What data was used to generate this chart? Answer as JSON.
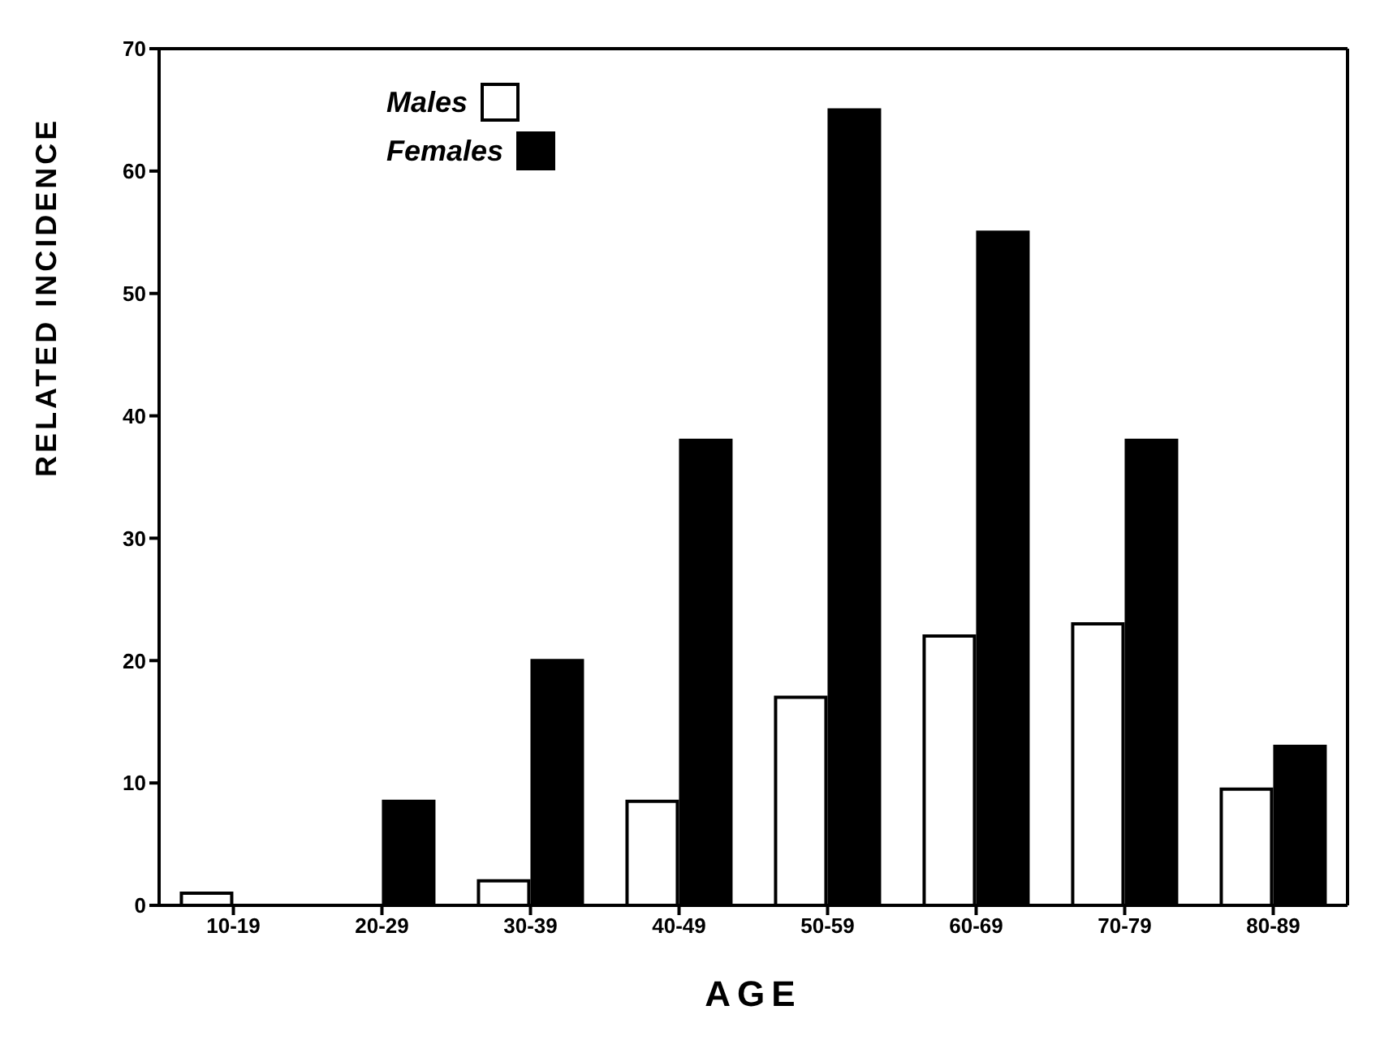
{
  "chart_data": {
    "type": "bar",
    "xlabel": "AGE",
    "ylabel": "RELATED INCIDENCE",
    "categories": [
      "10-19",
      "20-29",
      "30-39",
      "40-49",
      "50-59",
      "60-69",
      "70-79",
      "80-89"
    ],
    "series": [
      {
        "name": "Males",
        "color": "#ffffff",
        "values": [
          1,
          0,
          2,
          8.5,
          17,
          22,
          23,
          9.5
        ]
      },
      {
        "name": "Females",
        "color": "#000000",
        "values": [
          0,
          8.5,
          20,
          38,
          65,
          55,
          38,
          13
        ]
      }
    ],
    "ylim": [
      0,
      70
    ],
    "yticks": [
      0,
      10,
      20,
      30,
      40,
      50,
      60,
      70
    ],
    "legend": "top left",
    "grid": false
  }
}
